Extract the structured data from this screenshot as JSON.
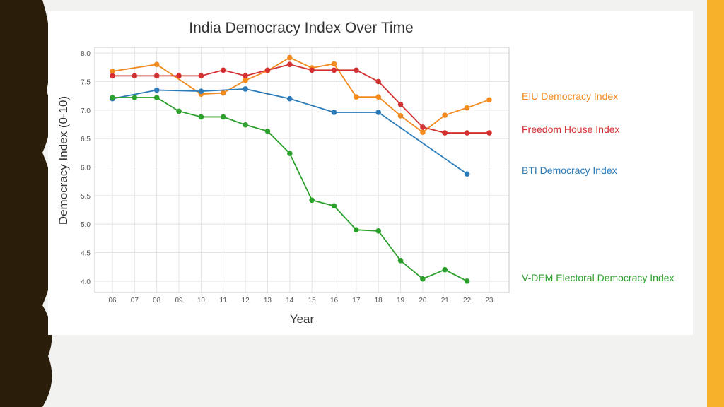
{
  "colors": {
    "eiu": "#f28a1e",
    "freedom_house": "#d33131",
    "bti": "#2b7bb9",
    "vdem": "#2ca02c",
    "sidebar": "#2a1d0a",
    "accent": "#f7b12a"
  },
  "chart_data": {
    "type": "line",
    "title": "India Democracy Index Over Time",
    "xlabel": "Year",
    "ylabel": "Democracy Index (0-10)",
    "ylim": [
      3.8,
      8.1
    ],
    "yticks": [
      "4.0",
      "4.5",
      "5.0",
      "5.5",
      "6.0",
      "6.5",
      "7.0",
      "7.5",
      "8.0"
    ],
    "categories": [
      "06",
      "07",
      "08",
      "09",
      "10",
      "11",
      "12",
      "13",
      "14",
      "15",
      "16",
      "17",
      "18",
      "19",
      "20",
      "21",
      "22",
      "23"
    ],
    "grid": true,
    "legend_placement": "right, labels beside line ends",
    "series": [
      {
        "name": "EIU Democracy Index",
        "color_key": "eiu",
        "x": [
          "06",
          "08",
          "10",
          "11",
          "12",
          "13",
          "14",
          "15",
          "16",
          "17",
          "18",
          "19",
          "20",
          "21",
          "22",
          "23"
        ],
        "values": [
          7.68,
          7.8,
          7.28,
          7.3,
          7.52,
          7.69,
          7.92,
          7.74,
          7.81,
          7.23,
          7.23,
          6.9,
          6.61,
          6.91,
          7.04,
          7.18
        ]
      },
      {
        "name": "Freedom House Index",
        "color_key": "freedom_house",
        "x": [
          "06",
          "07",
          "08",
          "09",
          "10",
          "11",
          "12",
          "13",
          "14",
          "15",
          "16",
          "17",
          "18",
          "19",
          "20",
          "21",
          "22",
          "23"
        ],
        "values": [
          7.6,
          7.6,
          7.6,
          7.6,
          7.6,
          7.7,
          7.6,
          7.7,
          7.8,
          7.7,
          7.7,
          7.7,
          7.5,
          7.1,
          6.7,
          6.6,
          6.6,
          6.6
        ]
      },
      {
        "name": "BTI Democracy Index",
        "color_key": "bti",
        "x": [
          "06",
          "08",
          "10",
          "12",
          "14",
          "16",
          "18",
          "22"
        ],
        "values": [
          7.2,
          7.35,
          7.33,
          7.37,
          7.2,
          6.96,
          6.96,
          5.88
        ]
      },
      {
        "name": "V-DEM Electoral Democracy Index",
        "color_key": "vdem",
        "x": [
          "06",
          "07",
          "08",
          "09",
          "10",
          "11",
          "12",
          "13",
          "14",
          "15",
          "16",
          "17",
          "18",
          "19",
          "20",
          "21",
          "22"
        ],
        "values": [
          7.22,
          7.22,
          7.22,
          6.98,
          6.88,
          6.88,
          6.74,
          6.63,
          6.24,
          5.42,
          5.32,
          4.9,
          4.88,
          4.36,
          4.04,
          4.2,
          4.0
        ]
      }
    ]
  }
}
